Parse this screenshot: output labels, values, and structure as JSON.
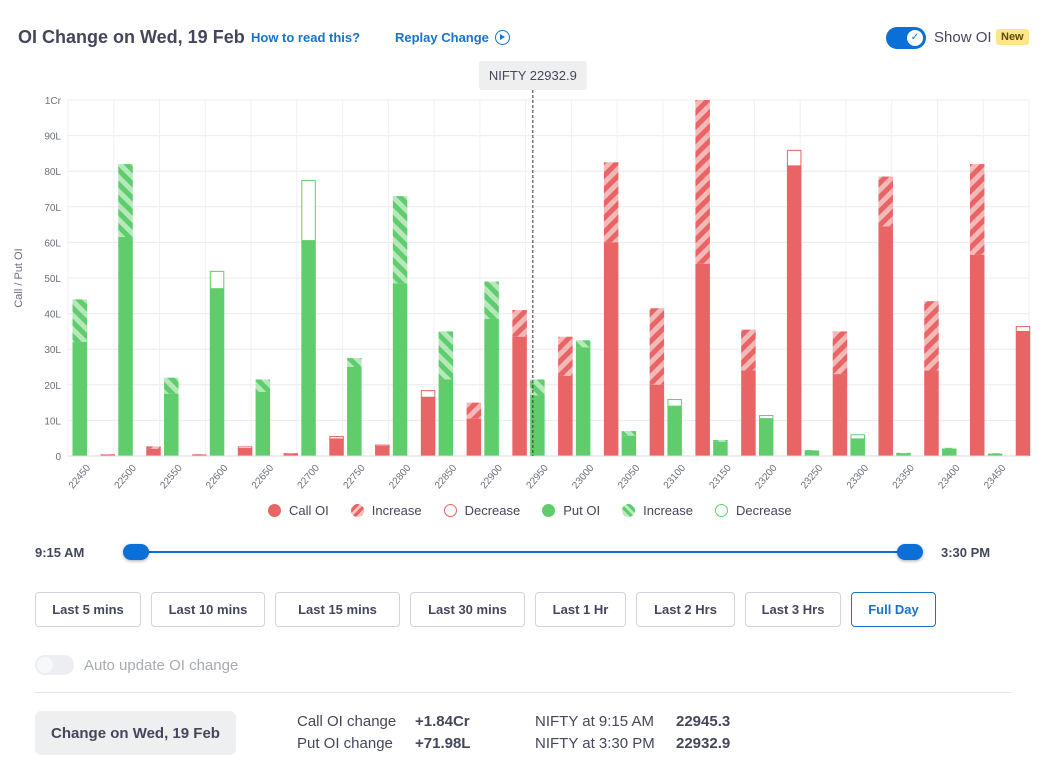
{
  "header": {
    "title": "OI Change on Wed, 19 Feb",
    "how_to_read": "How to read this?",
    "replay": "Replay Change",
    "show_oi": "Show OI",
    "new_badge": "New",
    "show_oi_on": true
  },
  "chart_data": {
    "type": "bar",
    "ylabel": "Call / Put OI",
    "y_ticks": [
      "1Cr",
      "90L",
      "80L",
      "70L",
      "60L",
      "50L",
      "40L",
      "30L",
      "20L",
      "10L",
      "0"
    ],
    "ylim": [
      0,
      100
    ],
    "y_unit": "L",
    "grid": true,
    "spot_label": "NIFTY 22932.9",
    "spot_value": 22932.9,
    "categories": [
      "22450",
      "22500",
      "22550",
      "22600",
      "22650",
      "22700",
      "22750",
      "22800",
      "22850",
      "22900",
      "22950",
      "23000",
      "23050",
      "23100",
      "23150",
      "23200",
      "23250",
      "23300",
      "23350",
      "23400",
      "23450"
    ],
    "series": [
      {
        "name": "Put OI",
        "color": "#5fcd6c",
        "values": [
          44,
          82,
          22,
          47,
          21.5,
          60.5,
          27.5,
          73,
          35,
          49,
          21.5,
          32.5,
          7,
          14,
          4.5,
          10.5,
          1.7,
          4.8,
          0.9,
          2.3,
          0.8
        ],
        "change": [
          12,
          20.5,
          4.5,
          -5,
          3.5,
          -17,
          2.5,
          24.5,
          13.5,
          10.5,
          4.5,
          2,
          1.3,
          -2,
          0.5,
          -1,
          0.2,
          -1.3,
          0.2,
          0.3,
          0.2
        ]
      },
      {
        "name": "Call OI",
        "color": "#e86465",
        "values": [
          0.5,
          2.7,
          0.5,
          2.1,
          0.8,
          4.8,
          2.7,
          16.5,
          15,
          41,
          33.5,
          82.5,
          41.5,
          100,
          35.5,
          81.5,
          35,
          78.5,
          43.5,
          82,
          35
        ],
        "change": [
          0.1,
          0.7,
          0.1,
          -0.6,
          0.1,
          -0.8,
          -0.5,
          -2,
          4.5,
          7.5,
          11,
          22.5,
          21.5,
          46,
          11.5,
          -4.5,
          12,
          14,
          19.5,
          25.5,
          -1.5
        ]
      }
    ]
  },
  "legend": [
    {
      "label": "Call OI",
      "style": "solid",
      "color": "#e86465"
    },
    {
      "label": "Increase",
      "style": "hatch",
      "color": "#e86465"
    },
    {
      "label": "Decrease",
      "style": "hollow",
      "color": "#e86465"
    },
    {
      "label": "Put OI",
      "style": "solid",
      "color": "#5fcd6c"
    },
    {
      "label": "Increase",
      "style": "hatch",
      "color": "#5fcd6c"
    },
    {
      "label": "Decrease",
      "style": "hollow",
      "color": "#5fcd6c"
    }
  ],
  "slider": {
    "start_label": "9:15 AM",
    "end_label": "3:30 PM"
  },
  "ranges": [
    "Last 5 mins",
    "Last 10 mins",
    "Last 15 mins",
    "Last 30 mins",
    "Last 1 Hr",
    "Last 2 Hrs",
    "Last 3 Hrs",
    "Full Day"
  ],
  "active_range": "Full Day",
  "auto_update": {
    "label": "Auto update OI change",
    "enabled": false
  },
  "summary": {
    "change_button": "Change on Wed, 19 Feb",
    "call_label": "Call OI change",
    "call_value": "+1.84Cr",
    "put_label": "Put OI change",
    "put_value": "+71.98L",
    "nifty_open_label": "NIFTY at 9:15 AM",
    "nifty_open_value": "22945.3",
    "nifty_close_label": "NIFTY at 3:30 PM",
    "nifty_close_value": "22932.9"
  }
}
